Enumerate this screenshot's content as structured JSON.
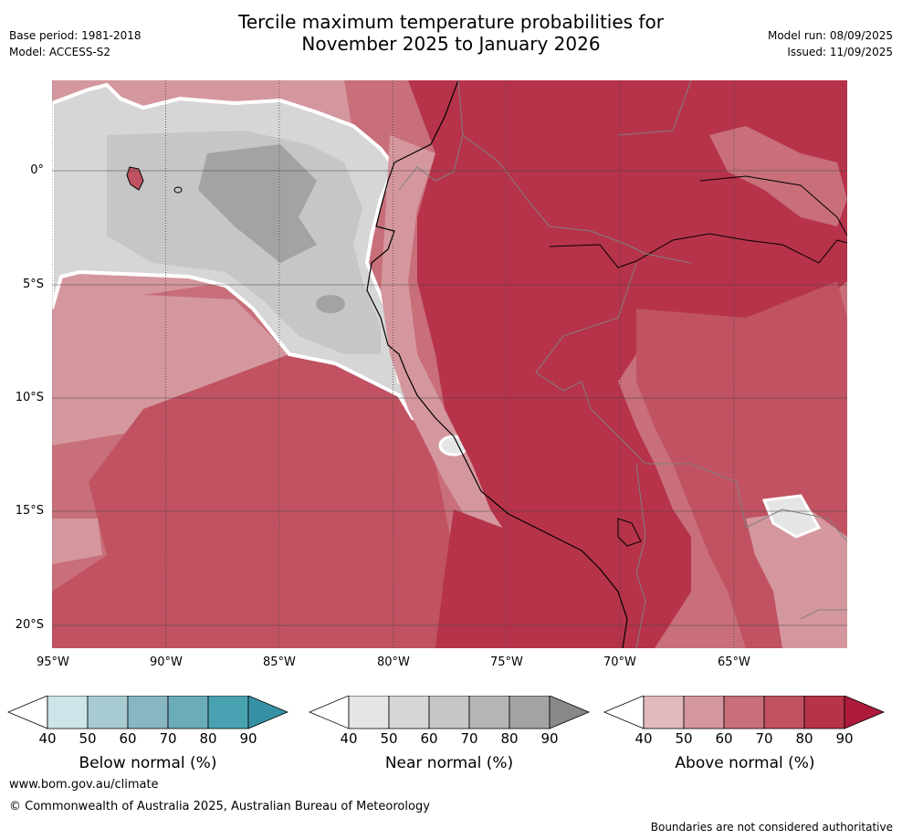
{
  "header": {
    "title_line1": "Tercile maximum temperature probabilities for",
    "title_line2": "November 2025 to January 2026",
    "base_period": "Base period: 1981-2018",
    "model": "Model: ACCESS-S2",
    "model_run": "Model run: 08/09/2025",
    "issued": "Issued: 11/09/2025"
  },
  "map": {
    "lon_ticks": [
      "95°W",
      "90°W",
      "85°W",
      "80°W",
      "75°W",
      "70°W",
      "65°W"
    ],
    "lat_ticks": [
      "0°",
      "5°S",
      "10°S",
      "15°S",
      "20°S"
    ]
  },
  "colorbars": [
    {
      "label": "Below normal (%)",
      "ticks": [
        "40",
        "50",
        "60",
        "70",
        "80",
        "90"
      ],
      "colors": [
        "#ffffff",
        "#cde4e8",
        "#a8cbd1",
        "#88b6c2",
        "#6aacb8",
        "#48a2b1",
        "#3691a4"
      ]
    },
    {
      "label": "Near normal (%)",
      "ticks": [
        "40",
        "50",
        "60",
        "70",
        "80",
        "90"
      ],
      "colors": [
        "#ffffff",
        "#e5e5e5",
        "#d6d6d6",
        "#c6c6c6",
        "#b5b5b5",
        "#a3a3a3",
        "#888888"
      ]
    },
    {
      "label": "Above normal (%)",
      "ticks": [
        "40",
        "50",
        "60",
        "70",
        "80",
        "90"
      ],
      "colors": [
        "#ffffff",
        "#e2b9bd",
        "#d5979e",
        "#c86f7a",
        "#c05261",
        "#b6334a",
        "#ad1a3a"
      ]
    }
  ],
  "footer": {
    "website": "www.bom.gov.au/climate",
    "copyright": "© Commonwealth of Australia 2025, Australian Bureau of Meteorology",
    "disclaimer": "Boundaries are not considered authoritative"
  }
}
